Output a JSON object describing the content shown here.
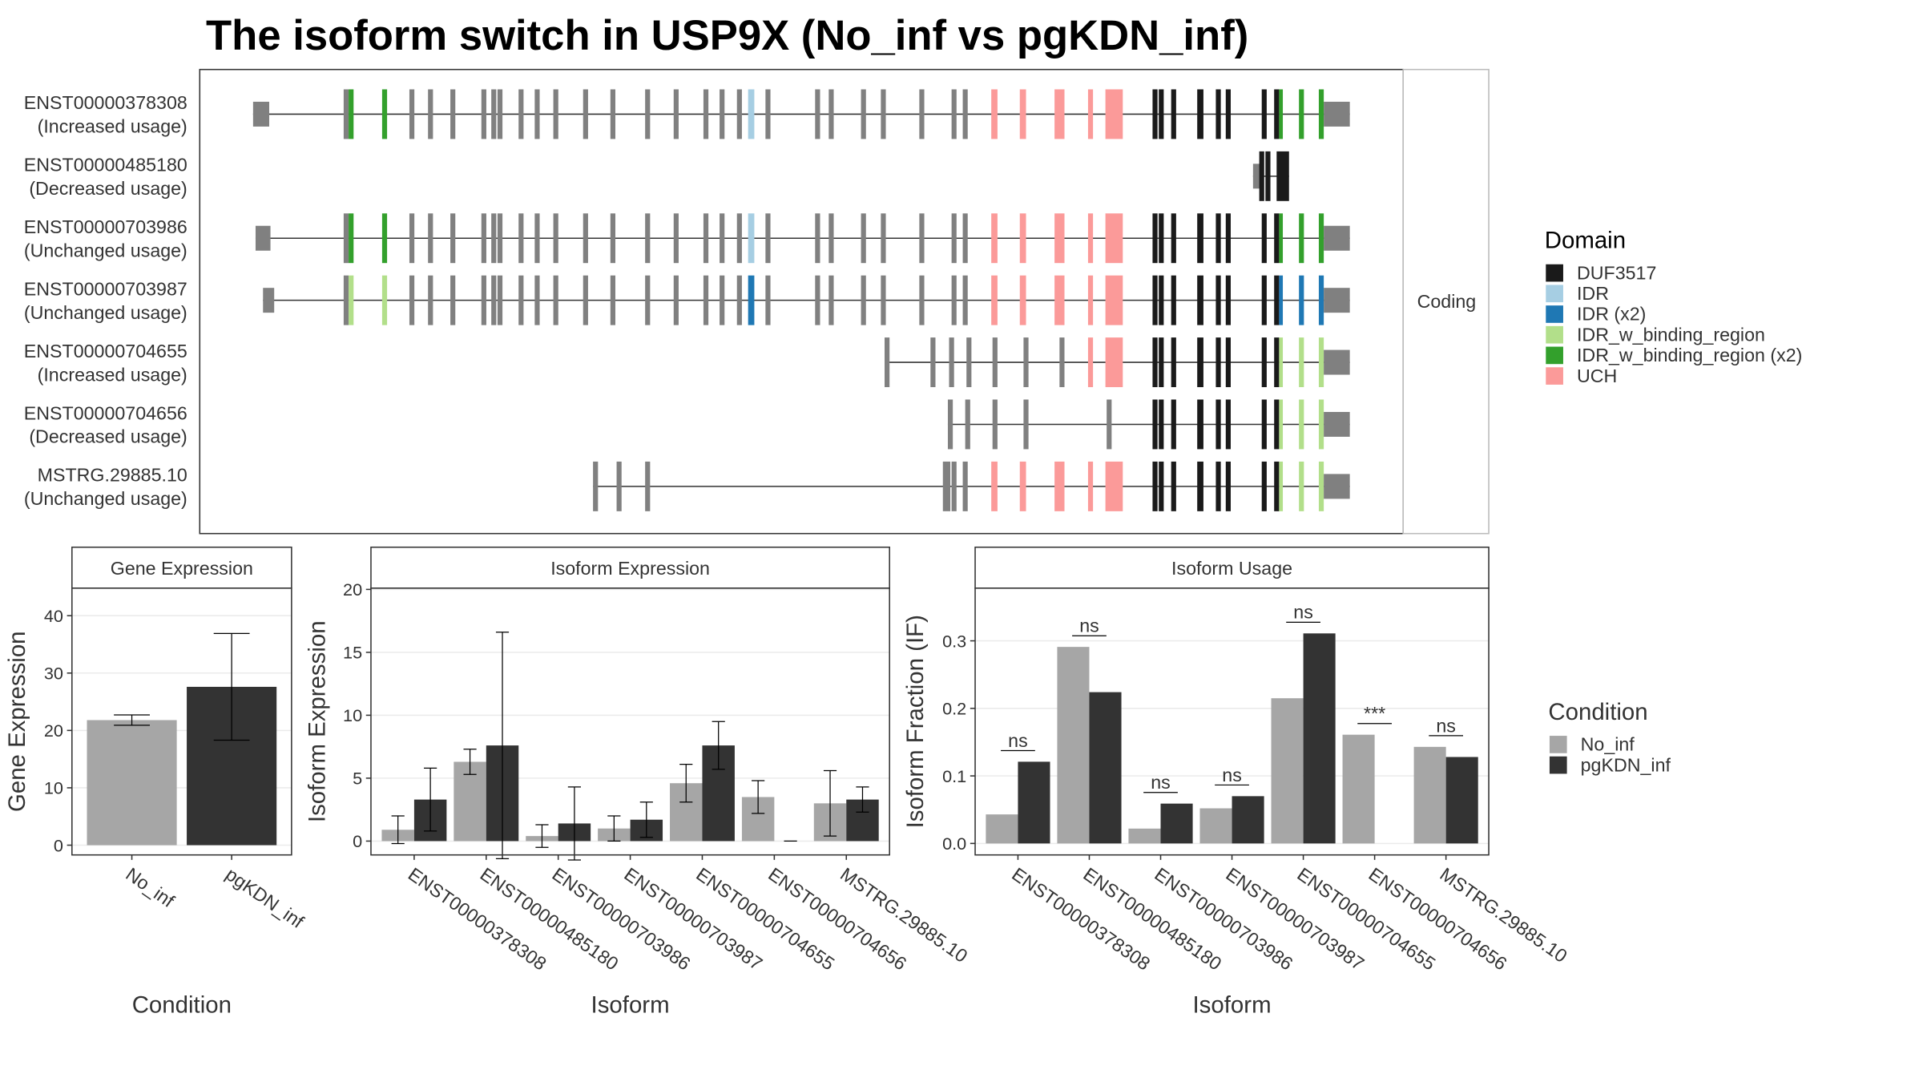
{
  "title": "The isoform switch in USP9X (No_inf vs pgKDN_inf)",
  "structure": {
    "transcripts": [
      {
        "id": "ENST00000378308",
        "usage": "(Increased usage)"
      },
      {
        "id": "ENST00000485180",
        "usage": "(Decreased usage)"
      },
      {
        "id": "ENST00000703986",
        "usage": "(Unchanged usage)"
      },
      {
        "id": "ENST00000703987",
        "usage": "(Unchanged usage)"
      },
      {
        "id": "ENST00000704655",
        "usage": "(Increased usage)"
      },
      {
        "id": "ENST00000704656",
        "usage": "(Decreased usage)"
      },
      {
        "id": "MSTRG.29885.10",
        "usage": "(Unchanged usage)"
      }
    ],
    "facet": "Coding",
    "legend_title": "Domain",
    "domains": [
      {
        "name": "DUF3517",
        "color": "#1a1a1a"
      },
      {
        "name": "IDR",
        "color": "#a6cee3"
      },
      {
        "name": "IDR (x2)",
        "color": "#1f78b4"
      },
      {
        "name": "IDR_w_binding_region",
        "color": "#b2df8a"
      },
      {
        "name": "IDR_w_binding_region (x2)",
        "color": "#33a02c"
      },
      {
        "name": "UCH",
        "color": "#fb9a99"
      }
    ]
  },
  "chart_data": [
    {
      "type": "bar",
      "title": "Gene Expression",
      "xlabel": "Condition",
      "ylabel": "Gene Expression",
      "categories": [
        "No_inf",
        "pgKDN_inf"
      ],
      "values": [
        21.8,
        27.6
      ],
      "errors": [
        0.9,
        9.3
      ],
      "colors": [
        "#a6a6a6",
        "#333333"
      ],
      "ylim": [
        -1.7,
        44.8
      ],
      "yticks": [
        0,
        10,
        20,
        30,
        40
      ],
      "grid": true
    },
    {
      "type": "bar",
      "title": "Isoform Expression",
      "xlabel": "Isoform",
      "ylabel": "Isoform Expression",
      "categories": [
        "ENST00000378308",
        "ENST00000485180",
        "ENST00000703986",
        "ENST00000703987",
        "ENST00000704655",
        "ENST00000704656",
        "MSTRG.29885.10"
      ],
      "series": [
        {
          "name": "No_inf",
          "color": "#a6a6a6",
          "values": [
            0.9,
            6.3,
            0.4,
            1.0,
            4.6,
            3.5,
            3.0
          ],
          "errors": [
            1.1,
            1.0,
            0.9,
            1.0,
            1.5,
            1.3,
            2.6
          ]
        },
        {
          "name": "pgKDN_inf",
          "color": "#333333",
          "values": [
            3.3,
            7.6,
            1.4,
            1.7,
            7.6,
            0.0,
            3.3
          ],
          "errors": [
            2.5,
            9.0,
            2.9,
            1.4,
            1.9,
            0.0,
            1.0
          ]
        }
      ],
      "ylim": [
        -1.1,
        20.1
      ],
      "yticks": [
        0,
        5,
        10,
        15,
        20
      ],
      "grid": true
    },
    {
      "type": "bar",
      "title": "Isoform Usage",
      "xlabel": "Isoform",
      "ylabel": "Isoform Fraction (IF)",
      "categories": [
        "ENST00000378308",
        "ENST00000485180",
        "ENST00000703986",
        "ENST00000703987",
        "ENST00000704655",
        "ENST00000704656",
        "MSTRG.29885.10"
      ],
      "series": [
        {
          "name": "No_inf",
          "color": "#a6a6a6",
          "values": [
            0.043,
            0.291,
            0.022,
            0.052,
            0.215,
            0.161,
            0.143
          ]
        },
        {
          "name": "pgKDN_inf",
          "color": "#333333",
          "values": [
            0.121,
            0.224,
            0.059,
            0.07,
            0.311,
            0.0,
            0.128
          ]
        }
      ],
      "annotations": [
        "ns",
        "ns",
        "ns",
        "ns",
        "ns",
        "***",
        "ns"
      ],
      "legend_title": "Condition",
      "ylim": [
        -0.017,
        0.378
      ],
      "yticks": [
        {
          "value": 0,
          "label": "0.0"
        },
        0.1,
        0.2,
        0.3
      ],
      "grid": true
    }
  ]
}
